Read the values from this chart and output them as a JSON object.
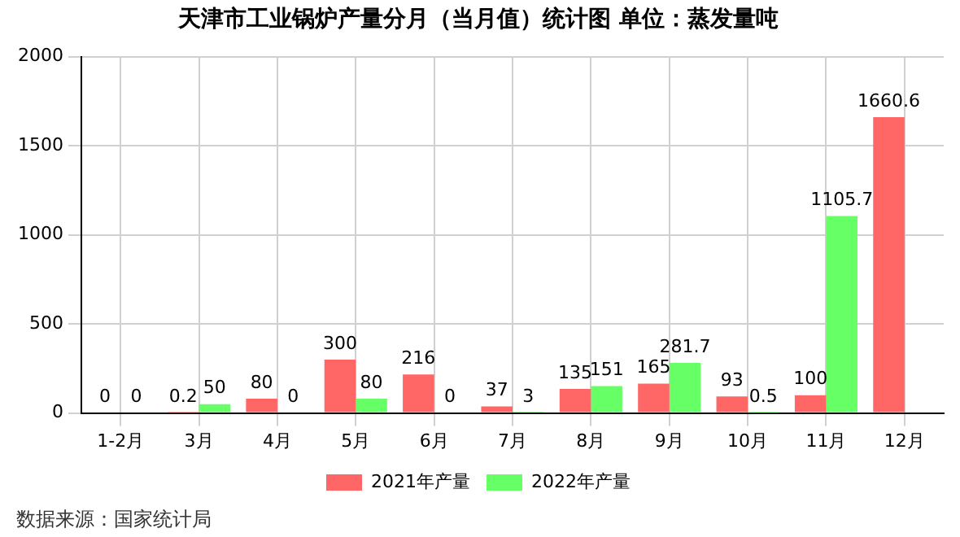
{
  "chart_data": {
    "type": "bar",
    "title": "天津市工业锅炉产量分月（当月值）统计图 单位：蒸发量吨",
    "categories": [
      "1-2月",
      "3月",
      "4月",
      "5月",
      "6月",
      "7月",
      "8月",
      "9月",
      "10月",
      "11月",
      "12月"
    ],
    "series": [
      {
        "name": "2021年产量",
        "color": "#ff6666",
        "values": [
          0,
          0.2,
          80,
          300,
          216,
          37,
          135,
          165,
          93,
          100,
          1660.6
        ]
      },
      {
        "name": "2022年产量",
        "color": "#66ff66",
        "values": [
          0,
          50,
          0,
          80,
          0,
          3,
          151,
          281.7,
          0.5,
          1105.7,
          null
        ]
      }
    ],
    "ylim": [
      0,
      2000
    ],
    "yticks": [
      0,
      500,
      1000,
      1500,
      2000
    ],
    "grid": true,
    "legend": "bottom",
    "data_labels": true,
    "annotations": [
      "数据来源：国家统计局"
    ]
  }
}
